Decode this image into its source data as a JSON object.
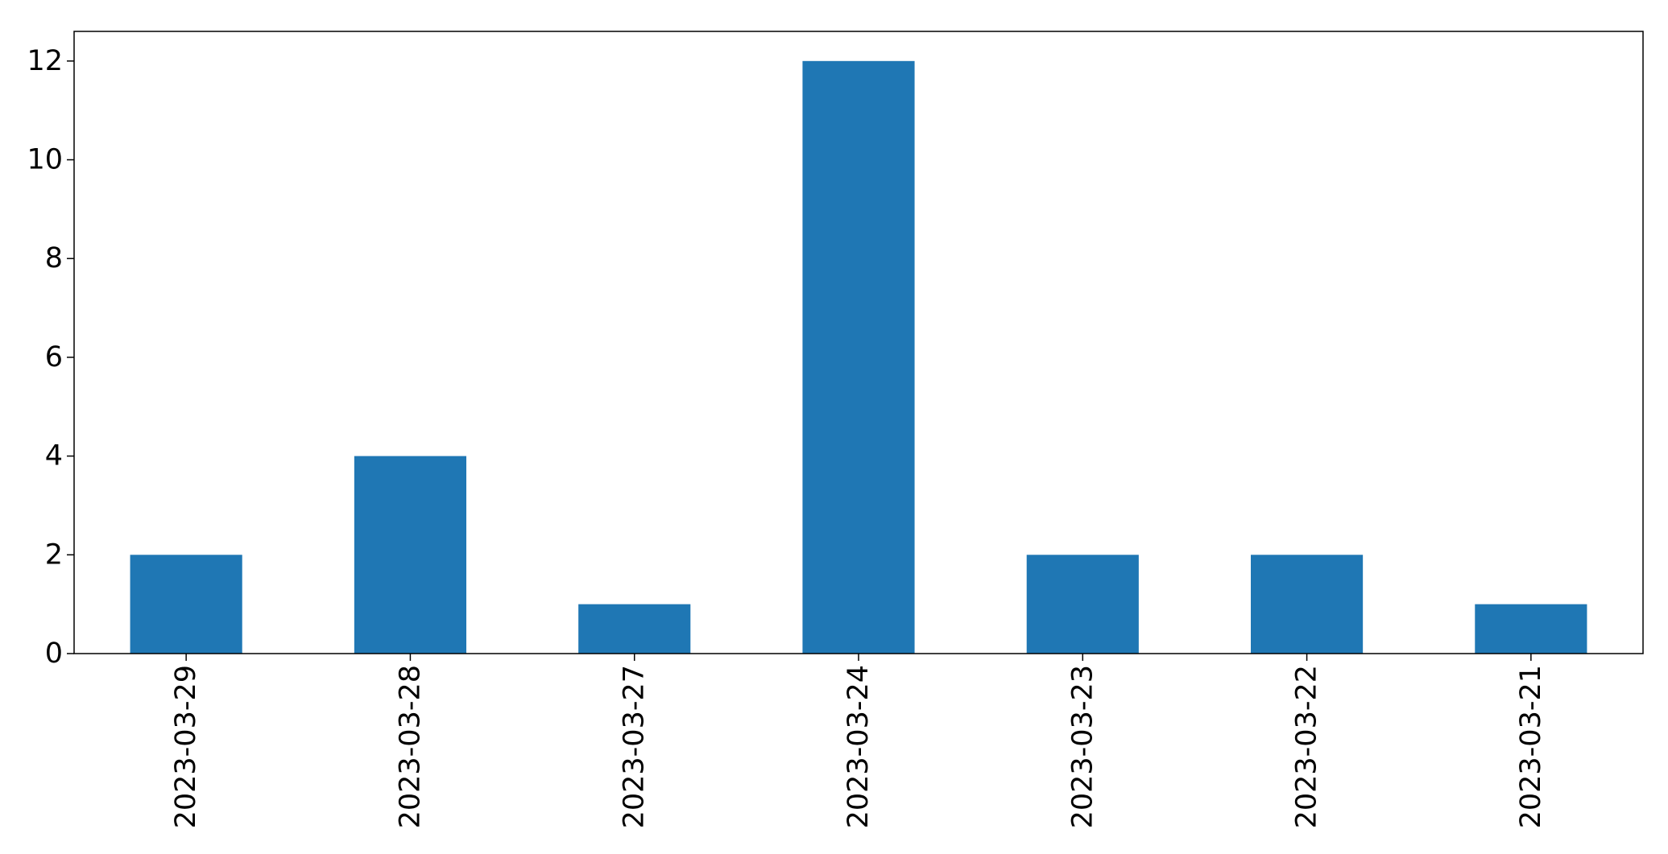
{
  "chart_data": {
    "type": "bar",
    "categories": [
      "2023-03-29",
      "2023-03-28",
      "2023-03-27",
      "2023-03-24",
      "2023-03-23",
      "2023-03-22",
      "2023-03-21"
    ],
    "values": [
      2,
      4,
      1,
      12,
      2,
      2,
      1
    ],
    "title": "",
    "xlabel": "",
    "ylabel": "",
    "ylim": [
      0,
      12.6
    ],
    "yticks": [
      0,
      2,
      4,
      6,
      8,
      10,
      12
    ],
    "grid": false,
    "bar_color": "#1f77b4"
  }
}
